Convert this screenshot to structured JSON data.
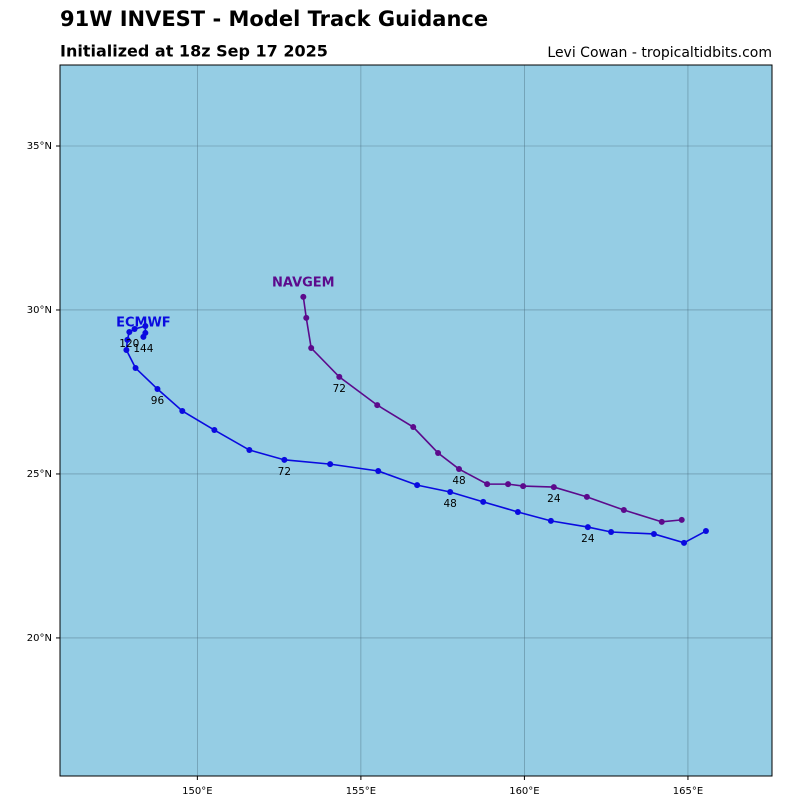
{
  "chart_data": {
    "type": "track",
    "title": "91W INVEST - Model Track Guidance",
    "subtitle": "Initialized at 18z Sep 17 2025",
    "credit": "Levi Cowan - tropicaltidbits.com",
    "background": "#95cde4",
    "grid": true,
    "xlim": [
      145.8,
      167.57
    ],
    "ylim": [
      15.79,
      37.47
    ],
    "xticks": [
      {
        "value": 150,
        "label": "150°E"
      },
      {
        "value": 155,
        "label": "155°E"
      },
      {
        "value": 160,
        "label": "160°E"
      },
      {
        "value": 165,
        "label": "165°E"
      }
    ],
    "yticks": [
      {
        "value": 20,
        "label": "20°N"
      },
      {
        "value": 25,
        "label": "25°N"
      },
      {
        "value": 30,
        "label": "30°N"
      },
      {
        "value": 35,
        "label": "35°N"
      }
    ],
    "series": [
      {
        "name": "ECMWF",
        "color": "#0a0ae0",
        "x": [
          165.55,
          164.88,
          163.96,
          162.65,
          161.94,
          160.81,
          159.8,
          158.74,
          157.73,
          156.72,
          155.53,
          154.06,
          152.66,
          151.59,
          150.52,
          149.54,
          148.78,
          148.11,
          147.83,
          147.86,
          147.92,
          148.08,
          148.41,
          148.41,
          148.35
        ],
        "values": [
          23.26,
          22.9,
          23.17,
          23.23,
          23.38,
          23.57,
          23.84,
          24.15,
          24.45,
          24.66,
          25.09,
          25.3,
          25.43,
          25.73,
          26.34,
          26.92,
          27.59,
          28.23,
          28.78,
          29.09,
          29.33,
          29.42,
          29.51,
          29.3,
          29.18
        ],
        "point_labels": [
          null,
          null,
          null,
          null,
          24,
          null,
          null,
          null,
          48,
          null,
          null,
          null,
          72,
          null,
          null,
          null,
          96,
          null,
          null,
          null,
          120,
          null,
          null,
          null,
          144
        ]
      },
      {
        "name": "NAVGEM",
        "color": "#5c0a8c",
        "x": [
          164.81,
          164.2,
          163.04,
          161.91,
          160.9,
          159.96,
          159.5,
          158.86,
          158.0,
          157.36,
          156.6,
          155.5,
          154.34,
          153.48,
          153.33,
          153.24
        ],
        "values": [
          23.6,
          23.54,
          23.9,
          24.3,
          24.6,
          24.63,
          24.69,
          24.69,
          25.15,
          25.64,
          26.43,
          27.1,
          27.96,
          28.84,
          29.76,
          30.4
        ],
        "point_labels": [
          null,
          null,
          null,
          null,
          24,
          null,
          null,
          null,
          48,
          null,
          null,
          null,
          72,
          null,
          null,
          null
        ]
      }
    ]
  }
}
